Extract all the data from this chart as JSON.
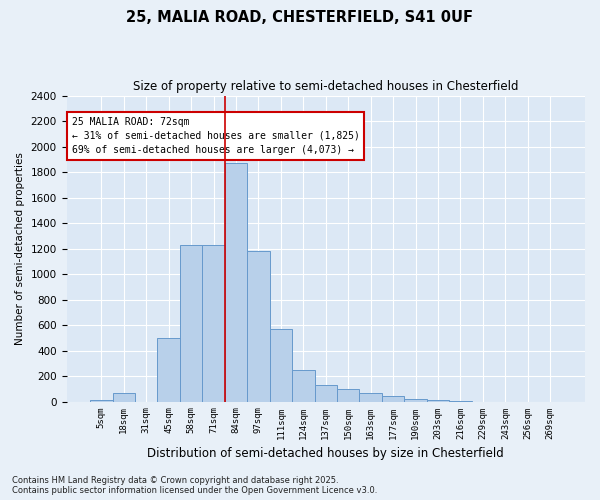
{
  "title1": "25, MALIA ROAD, CHESTERFIELD, S41 0UF",
  "title2": "Size of property relative to semi-detached houses in Chesterfield",
  "xlabel": "Distribution of semi-detached houses by size in Chesterfield",
  "ylabel": "Number of semi-detached properties",
  "footnote": "Contains HM Land Registry data © Crown copyright and database right 2025.\nContains public sector information licensed under the Open Government Licence v3.0.",
  "annotation_title": "25 MALIA ROAD: 72sqm",
  "annotation_line1": "← 31% of semi-detached houses are smaller (1,825)",
  "annotation_line2": "69% of semi-detached houses are larger (4,073) →",
  "bar_categories": [
    "5sqm",
    "18sqm",
    "31sqm",
    "45sqm",
    "58sqm",
    "71sqm",
    "84sqm",
    "97sqm",
    "111sqm",
    "124sqm",
    "137sqm",
    "150sqm",
    "163sqm",
    "177sqm",
    "190sqm",
    "203sqm",
    "216sqm",
    "229sqm",
    "243sqm",
    "256sqm",
    "269sqm"
  ],
  "bar_values": [
    10,
    65,
    0,
    500,
    1230,
    1230,
    1870,
    1180,
    570,
    250,
    130,
    100,
    65,
    40,
    20,
    15,
    8,
    0,
    0,
    0,
    0
  ],
  "bar_color": "#b8d0ea",
  "bar_edgecolor": "#6699cc",
  "vline_color": "#cc0000",
  "vline_x_idx": 5.5,
  "annotation_box_color": "#cc0000",
  "bg_color": "#dce8f5",
  "grid_color": "#ffffff",
  "fig_bg_color": "#e8f0f8",
  "ylim": [
    0,
    2400
  ],
  "yticks": [
    0,
    200,
    400,
    600,
    800,
    1000,
    1200,
    1400,
    1600,
    1800,
    2000,
    2200,
    2400
  ]
}
